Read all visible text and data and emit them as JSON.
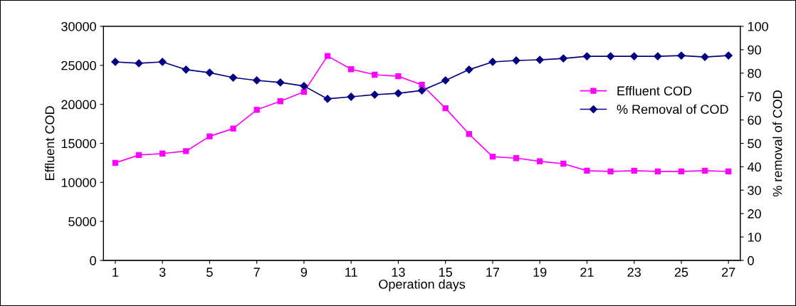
{
  "chart_data": {
    "type": "line",
    "xlabel": "Operation days",
    "ylabel": "Effluent COD",
    "y2label": "% removal of COD",
    "x": [
      1,
      2,
      3,
      4,
      5,
      6,
      7,
      8,
      9,
      10,
      11,
      12,
      13,
      14,
      15,
      16,
      17,
      18,
      19,
      20,
      21,
      22,
      23,
      24,
      25,
      26,
      27
    ],
    "xlim": [
      0.5,
      27.5
    ],
    "xticks": [
      1,
      3,
      5,
      7,
      9,
      11,
      13,
      15,
      17,
      19,
      21,
      23,
      25,
      27
    ],
    "ylim": [
      0,
      30000
    ],
    "yticks": [
      0,
      5000,
      10000,
      15000,
      20000,
      25000,
      30000
    ],
    "y2lim": [
      0,
      100
    ],
    "y2ticks": [
      0,
      10,
      20,
      30,
      40,
      50,
      60,
      70,
      80,
      90,
      100
    ],
    "series": [
      {
        "name": "Effluent COD",
        "color": "#ff00ff",
        "marker": "square",
        "values": [
          12500,
          13500,
          13700,
          14000,
          15900,
          16900,
          19300,
          20400,
          21600,
          26200,
          24500,
          23800,
          23600,
          22500,
          19500,
          16200,
          13300,
          13100,
          12700,
          12400,
          11500,
          11400,
          11500,
          11400,
          11400,
          11500,
          11400
        ]
      },
      {
        "name": "% Removal of COD",
        "color": "#000080",
        "marker": "diamond",
        "axis": "y2",
        "values": [
          84.8,
          84.2,
          84.8,
          81.5,
          80.2,
          78.1,
          76.9,
          76.0,
          74.5,
          69.0,
          69.9,
          70.8,
          71.4,
          72.6,
          76.9,
          81.5,
          84.8,
          85.4,
          85.7,
          86.3,
          87.2,
          87.2,
          87.2,
          87.2,
          87.5,
          86.9,
          87.5
        ]
      }
    ],
    "legend": "right",
    "grid": false,
    "line_style": "solid"
  }
}
